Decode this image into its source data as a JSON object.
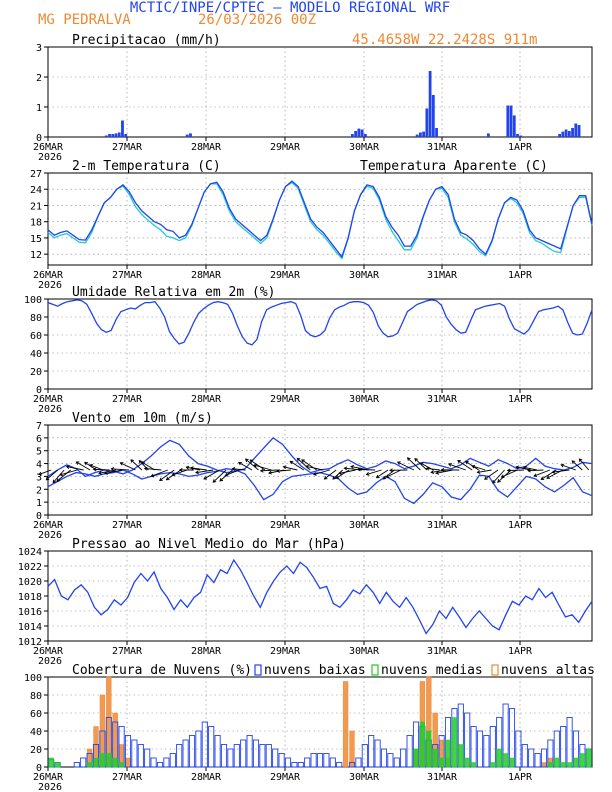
{
  "header": {
    "title": "MCTIC/INPE/CPTEC – MODELO REGIONAL WRF",
    "station": "MG PEDRALVA",
    "run": "26/03/2026 00Z",
    "location": "45.4658W 22.2428S 911m"
  },
  "colors": {
    "blue": "#2244ee",
    "cyan": "#22cccc",
    "green": "#22cc22",
    "orange": "#ee8833",
    "grid": "#888888"
  },
  "chart_data": [
    {
      "type": "bar",
      "title": "Precipitacao (mm/h)",
      "ylim": [
        0,
        3
      ],
      "yticks": [
        0,
        1,
        2,
        3
      ],
      "xlabels": [
        "26MAR",
        "27MAR",
        "28MAR",
        "29MAR",
        "30MAR",
        "31MAR",
        "1APR"
      ],
      "year_label": "2026",
      "values_hourly": {
        "h18": 0.05,
        "h19": 0.1,
        "h20": 0.1,
        "h21": 0.12,
        "h22": 0.15,
        "h23": 0.55,
        "h24": 0.1,
        "h43": 0.08,
        "h44": 0.12,
        "h94": 0.1,
        "h95": 0.2,
        "h96": 0.28,
        "h97": 0.25,
        "h98": 0.1,
        "h114": 0.08,
        "h115": 0.15,
        "h116": 0.18,
        "h117": 0.95,
        "h118": 2.2,
        "h119": 1.4,
        "h120": 0.3,
        "h136": 0.12,
        "h142": 1.05,
        "h143": 1.05,
        "h144": 0.72,
        "h145": 0.1,
        "h146": 0.05,
        "h158": 0.1,
        "h159": 0.18,
        "h160": 0.25,
        "h161": 0.2,
        "h162": 0.3,
        "h163": 0.45,
        "h164": 0.4
      }
    },
    {
      "type": "line",
      "title": "2-m Temperatura (C)",
      "legend": "Temperatura Aparente (C)",
      "ylim": [
        10,
        27
      ],
      "yticks": [
        12,
        15,
        18,
        21,
        24,
        27
      ],
      "series": [
        {
          "name": "2-m Temperatura (C)",
          "color": "#2244ee",
          "values": [
            16.5,
            15.5,
            16.0,
            16.3,
            15.5,
            14.7,
            14.6,
            16.5,
            19.0,
            21.5,
            22.5,
            24.0,
            24.8,
            23.5,
            21.5,
            20.0,
            19.0,
            18.0,
            17.5,
            16.5,
            16.2,
            15.0,
            15.5,
            17.5,
            20.5,
            23.5,
            25.0,
            25.3,
            23.5,
            20.5,
            18.5,
            17.5,
            16.5,
            15.5,
            14.5,
            15.5,
            18.5,
            22.0,
            24.5,
            25.5,
            24.5,
            21.5,
            18.5,
            17.0,
            16.0,
            14.5,
            13.0,
            11.5,
            15.0,
            20.0,
            23.0,
            24.8,
            24.5,
            22.5,
            19.0,
            17.0,
            15.5,
            13.5,
            13.5,
            15.5,
            19.0,
            22.0,
            24.0,
            24.5,
            23.0,
            18.5,
            16.0,
            15.5,
            14.5,
            13.0,
            12.0,
            14.5,
            18.5,
            21.5,
            22.5,
            22.0,
            20.0,
            16.5,
            15.0,
            14.5,
            14.0,
            13.5,
            13.0,
            17.0,
            21.0,
            22.8,
            22.8,
            17.5
          ]
        },
        {
          "name": "Temperatura Aparente (C)",
          "color": "#22cccc",
          "values": [
            16.0,
            15.0,
            15.5,
            15.8,
            15.0,
            14.2,
            14.1,
            16.0,
            19.0,
            21.5,
            22.5,
            24.0,
            24.6,
            23.0,
            20.8,
            19.3,
            18.3,
            17.3,
            16.5,
            15.3,
            15.0,
            14.5,
            15.0,
            17.2,
            20.5,
            23.5,
            25.0,
            25.0,
            23.0,
            20.0,
            18.0,
            17.0,
            16.0,
            15.0,
            14.0,
            15.0,
            18.3,
            22.0,
            24.5,
            25.2,
            24.2,
            21.0,
            18.0,
            16.5,
            15.5,
            14.0,
            12.5,
            11.2,
            14.8,
            20.0,
            23.0,
            24.5,
            24.2,
            22.0,
            18.5,
            16.2,
            14.5,
            12.8,
            12.8,
            15.0,
            18.8,
            22.0,
            24.0,
            24.2,
            22.5,
            18.0,
            15.5,
            14.8,
            13.8,
            12.5,
            11.7,
            14.3,
            18.5,
            21.5,
            22.3,
            21.5,
            19.5,
            16.0,
            14.5,
            14.0,
            13.2,
            12.5,
            12.3,
            16.8,
            21.0,
            22.5,
            22.5,
            17.3
          ]
        }
      ]
    },
    {
      "type": "line",
      "title": "Umidade Relativa em 2m (%)",
      "ylim": [
        0,
        100
      ],
      "yticks": [
        0,
        20,
        40,
        60,
        80,
        100
      ],
      "series": [
        {
          "name": "Umidade Relativa",
          "color": "#2244ee",
          "values": [
            96,
            94,
            92,
            95,
            97,
            98,
            99,
            98,
            94,
            84,
            73,
            66,
            63,
            65,
            77,
            86,
            88,
            90,
            89,
            93,
            96,
            96,
            97,
            90,
            80,
            64,
            56,
            50,
            52,
            62,
            74,
            84,
            89,
            93,
            96,
            97,
            96,
            94,
            84,
            70,
            58,
            51,
            49,
            55,
            75,
            88,
            91,
            93,
            95,
            96,
            97,
            95,
            82,
            65,
            60,
            58,
            60,
            65,
            79,
            88,
            91,
            93,
            96,
            97,
            97,
            96,
            93,
            85,
            70,
            62,
            58,
            59,
            62,
            74,
            86,
            90,
            94,
            96,
            98,
            99,
            98,
            93,
            80,
            72,
            66,
            62,
            63,
            76,
            88,
            90,
            92,
            93,
            94,
            95,
            92,
            78,
            67,
            64,
            61,
            66,
            76,
            86,
            88,
            89,
            90,
            92,
            88,
            74,
            62,
            60,
            61,
            73,
            88
          ]
        }
      ]
    },
    {
      "type": "line",
      "title": "Vento em 10m (m/s)",
      "ylim": [
        0,
        7
      ],
      "yticks": [
        0,
        1,
        2,
        3,
        4,
        5,
        6,
        7
      ],
      "series": [
        {
          "name": "vento max",
          "color": "#2244ee",
          "values": [
            3.0,
            3.5,
            3.9,
            3.6,
            3.0,
            3.3,
            3.5,
            3.4,
            3.2,
            3.5,
            4.0,
            4.6,
            5.3,
            5.8,
            5.5,
            4.6,
            4.0,
            3.8,
            3.5,
            3.3,
            3.4,
            3.6,
            4.4,
            5.2,
            6.0,
            5.5,
            4.6,
            3.8,
            3.3,
            3.5,
            3.6,
            4.0,
            4.3,
            3.9,
            3.6,
            3.8,
            4.2,
            4.0,
            3.6,
            3.8,
            4.1,
            4.0,
            3.8,
            3.6,
            3.9,
            4.4,
            4.1,
            3.8,
            4.3,
            4.0,
            3.6,
            3.8,
            4.4,
            3.8,
            3.6,
            3.5,
            3.7,
            4.1,
            4.0
          ]
        },
        {
          "name": "vento min",
          "color": "#2244ee",
          "values": [
            2.2,
            2.6,
            3.0,
            3.3,
            3.2,
            3.0,
            3.2,
            3.3,
            3.5,
            3.2,
            2.8,
            3.0,
            3.2,
            3.3,
            3.2,
            3.0,
            3.1,
            3.3,
            3.4,
            3.6,
            3.5,
            3.2,
            2.3,
            1.2,
            1.6,
            2.6,
            3.0,
            3.1,
            3.2,
            3.3,
            3.1,
            2.8,
            2.1,
            1.6,
            1.8,
            2.5,
            3.0,
            2.6,
            1.3,
            0.9,
            1.6,
            2.5,
            2.2,
            1.4,
            1.2,
            2.0,
            3.1,
            3.0,
            1.9,
            1.4,
            2.2,
            3.0,
            2.8,
            2.2,
            1.8,
            2.3,
            2.9,
            1.8,
            1.5
          ]
        }
      ]
    },
    {
      "type": "line",
      "title": "Pressao ao Nivel Medio do Mar (hPa)",
      "ylim": [
        1012,
        1024
      ],
      "yticks": [
        1012,
        1014,
        1016,
        1018,
        1020,
        1022,
        1024
      ],
      "series": [
        {
          "name": "Pressao",
          "color": "#2244ee",
          "values": [
            1019.3,
            1020.2,
            1018.0,
            1017.5,
            1018.8,
            1019.5,
            1018.5,
            1016.5,
            1015.5,
            1016.2,
            1017.5,
            1016.8,
            1017.8,
            1019.8,
            1021.0,
            1020.0,
            1021.2,
            1019.0,
            1017.8,
            1016.2,
            1017.5,
            1016.5,
            1017.8,
            1018.5,
            1020.8,
            1019.8,
            1021.5,
            1021.0,
            1022.8,
            1021.5,
            1019.8,
            1018.0,
            1016.5,
            1018.5,
            1020.0,
            1021.2,
            1022.0,
            1021.0,
            1022.5,
            1021.8,
            1020.5,
            1019.0,
            1019.3,
            1017.0,
            1016.5,
            1017.5,
            1018.8,
            1018.3,
            1019.5,
            1018.5,
            1017.0,
            1018.5,
            1017.3,
            1016.5,
            1017.8,
            1016.5,
            1014.8,
            1013.0,
            1014.2,
            1016.0,
            1015.0,
            1016.5,
            1015.2,
            1013.8,
            1015.0,
            1016.0,
            1015.0,
            1014.0,
            1013.5,
            1015.5,
            1017.3,
            1016.8,
            1018.0,
            1017.5,
            1019.0,
            1017.8,
            1018.5,
            1016.8,
            1015.2,
            1015.5,
            1014.5,
            1016.0,
            1017.3
          ]
        }
      ]
    },
    {
      "type": "bar",
      "title": "Cobertura de Nuvens (%)",
      "ylim": [
        0,
        100
      ],
      "yticks": [
        0,
        20,
        40,
        60,
        80,
        100
      ],
      "legend": [
        "nuvens baixas",
        "nuvens medias",
        "nuvens altas"
      ],
      "series": [
        {
          "name": "nuvens baixas",
          "color": "#2244ee",
          "values": [
            8,
            5,
            0,
            0,
            5,
            10,
            15,
            25,
            40,
            55,
            50,
            45,
            35,
            30,
            25,
            20,
            10,
            5,
            10,
            15,
            25,
            30,
            35,
            40,
            50,
            45,
            35,
            25,
            20,
            25,
            30,
            35,
            30,
            25,
            25,
            20,
            15,
            10,
            5,
            5,
            10,
            15,
            15,
            15,
            10,
            5,
            0,
            5,
            10,
            25,
            35,
            30,
            20,
            15,
            10,
            20,
            35,
            50,
            45,
            30,
            25,
            35,
            55,
            65,
            70,
            60,
            45,
            40,
            35,
            45,
            55,
            70,
            65,
            40,
            25,
            20,
            15,
            20,
            30,
            40,
            45,
            55,
            40,
            25,
            20
          ]
        },
        {
          "name": "nuvens medias",
          "color": "#22cc22",
          "values": [
            10,
            5,
            0,
            0,
            0,
            0,
            5,
            10,
            15,
            15,
            10,
            5,
            0,
            0,
            0,
            0,
            0,
            0,
            0,
            0,
            0,
            0,
            0,
            0,
            0,
            0,
            0,
            0,
            0,
            0,
            0,
            0,
            0,
            0,
            0,
            0,
            0,
            0,
            0,
            0,
            0,
            0,
            0,
            0,
            0,
            0,
            0,
            0,
            0,
            0,
            0,
            0,
            0,
            0,
            0,
            0,
            0,
            20,
            50,
            40,
            20,
            10,
            30,
            55,
            25,
            10,
            5,
            0,
            0,
            5,
            20,
            15,
            10,
            0,
            0,
            0,
            0,
            0,
            5,
            10,
            5,
            5,
            10,
            15,
            20
          ]
        },
        {
          "name": "nuvens altas",
          "color": "#ee8833",
          "values": [
            0,
            0,
            0,
            0,
            0,
            0,
            20,
            45,
            80,
            100,
            60,
            25,
            10,
            0,
            0,
            0,
            0,
            0,
            0,
            0,
            0,
            0,
            0,
            0,
            0,
            0,
            0,
            0,
            0,
            0,
            0,
            0,
            0,
            0,
            0,
            0,
            0,
            0,
            0,
            0,
            0,
            0,
            0,
            0,
            0,
            0,
            95,
            40,
            0,
            0,
            0,
            0,
            0,
            0,
            0,
            0,
            0,
            20,
            95,
            100,
            60,
            30,
            10,
            0,
            0,
            0,
            0,
            0,
            0,
            0,
            0,
            0,
            0,
            0,
            0,
            0,
            0,
            5,
            10,
            0,
            0,
            0,
            0,
            0,
            0
          ]
        }
      ]
    }
  ]
}
